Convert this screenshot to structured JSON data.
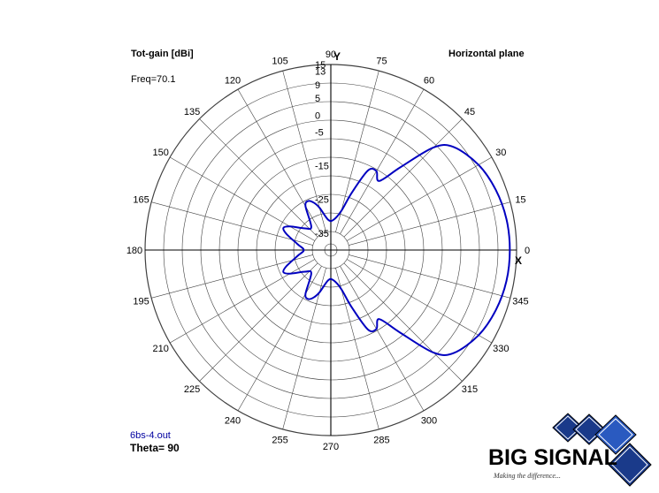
{
  "header": {
    "title": "Tot-gain [dBi]",
    "plane": "Horizontal plane",
    "freq": "Freq=70.1"
  },
  "footer": {
    "file": "6bs-4.out",
    "theta": "Theta= 90"
  },
  "axes": {
    "x_axis_label": "X",
    "y_axis_label": "Y"
  },
  "logo": {
    "text": "BIG SIGNAL",
    "tagline": "Making the difference..."
  },
  "colors": {
    "trace": "#0000c0",
    "grid": "#404040"
  },
  "chart_data": {
    "type": "polar",
    "title": "Tot-gain [dBi]",
    "subtitle": "Horizontal plane",
    "radial_unit": "dBi",
    "radial_range": [
      -40,
      15
    ],
    "radial_ticks": [
      "15",
      "13",
      "9",
      "5",
      "0",
      "-5",
      "-15",
      "-25",
      "-35"
    ],
    "angle_ticks": [
      "0",
      "15",
      "30",
      "45",
      "60",
      "75",
      "90",
      "105",
      "120",
      "135",
      "150",
      "165",
      "180",
      "195",
      "210",
      "225",
      "240",
      "255",
      "270",
      "285",
      "300",
      "315",
      "330",
      "345"
    ],
    "series": [
      {
        "points": [
          [
            0,
            13.0
          ],
          [
            10,
            12.8
          ],
          [
            20,
            12.0
          ],
          [
            30,
            10.5
          ],
          [
            40,
            7.5
          ],
          [
            45,
            3.0
          ],
          [
            50,
            -8.0
          ],
          [
            55,
            -15.0
          ],
          [
            60,
            -13.0
          ],
          [
            65,
            -14.0
          ],
          [
            70,
            -22.0
          ],
          [
            75,
            -28.0
          ],
          [
            85,
            -31.0
          ],
          [
            95,
            -31.0
          ],
          [
            105,
            -27.0
          ],
          [
            110,
            -25.0
          ],
          [
            115,
            -24.0
          ],
          [
            120,
            -25.0
          ],
          [
            130,
            -31.0
          ],
          [
            140,
            -30.0
          ],
          [
            150,
            -26.0
          ],
          [
            155,
            -24.5
          ],
          [
            160,
            -26.0
          ],
          [
            170,
            -30.0
          ],
          [
            180,
            -32.0
          ],
          [
            190,
            -30.0
          ],
          [
            200,
            -26.0
          ],
          [
            205,
            -24.5
          ],
          [
            210,
            -26.0
          ],
          [
            220,
            -30.0
          ],
          [
            230,
            -31.0
          ],
          [
            240,
            -25.0
          ],
          [
            245,
            -24.0
          ],
          [
            250,
            -25.0
          ],
          [
            255,
            -27.0
          ],
          [
            265,
            -31.0
          ],
          [
            275,
            -31.0
          ],
          [
            285,
            -28.0
          ],
          [
            290,
            -22.0
          ],
          [
            295,
            -14.0
          ],
          [
            300,
            -13.0
          ],
          [
            305,
            -15.0
          ],
          [
            310,
            -8.0
          ],
          [
            315,
            3.0
          ],
          [
            320,
            7.5
          ],
          [
            330,
            10.5
          ],
          [
            340,
            12.0
          ],
          [
            350,
            12.8
          ],
          [
            360,
            13.0
          ]
        ]
      }
    ]
  }
}
